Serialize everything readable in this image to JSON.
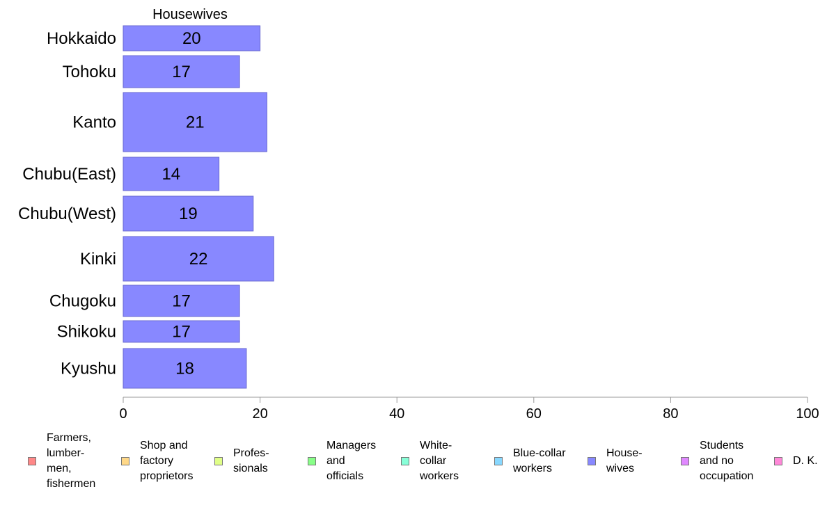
{
  "chart_data": {
    "type": "bar",
    "orientation": "horizontal",
    "title": "Housewives",
    "categories": [
      "Hokkaido",
      "Tohoku",
      "Kanto",
      "Chubu(East)",
      "Chubu(West)",
      "Kinki",
      "Chugoku",
      "Shikoku",
      "Kyushu"
    ],
    "values": [
      20,
      17,
      21,
      14,
      19,
      22,
      17,
      17,
      18
    ],
    "value_labels": [
      "20",
      "17",
      "21",
      "14",
      "19",
      "22",
      "17",
      "17",
      "18"
    ],
    "bar_color": "#8888ff",
    "bar_border": "#6a6ad0",
    "xlim": [
      0,
      100
    ],
    "xticks": [
      0,
      20,
      40,
      60,
      80,
      100
    ],
    "xtick_labels": [
      "0",
      "20",
      "40",
      "60",
      "80",
      "100"
    ],
    "xlabel": "",
    "ylabel": "",
    "grid": false,
    "legend_position": "bottom",
    "legend": [
      {
        "label": "Farmers,\nlumber-\nmen,\nfishermen",
        "color": "#ff8888"
      },
      {
        "label": "Shop and\nfactory\nproprietors",
        "color": "#ffd888"
      },
      {
        "label": "Profes-\nsionals",
        "color": "#e0ff88"
      },
      {
        "label": "Managers\nand\nofficials",
        "color": "#88ff88"
      },
      {
        "label": "White-\ncollar\nworkers",
        "color": "#88ffd8"
      },
      {
        "label": "Blue-collar\nworkers",
        "color": "#88d8ff"
      },
      {
        "label": "House-\nwives",
        "color": "#8888ff"
      },
      {
        "label": "Students\nand no\noccupation",
        "color": "#e088ff"
      },
      {
        "label": "D. K.",
        "color": "#ff88d8"
      }
    ]
  }
}
